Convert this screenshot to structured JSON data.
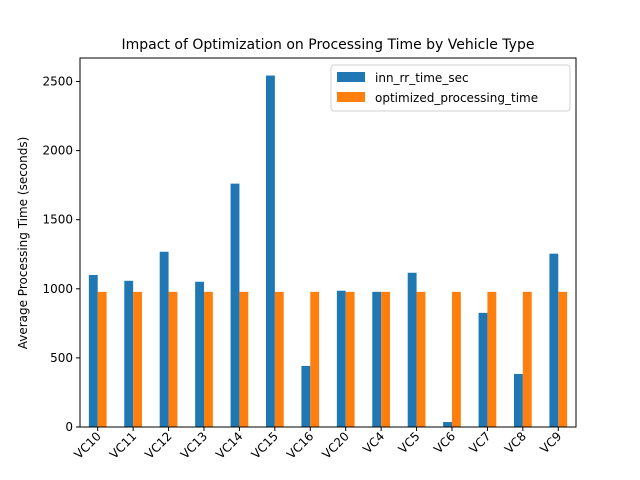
{
  "chart_data": {
    "type": "bar",
    "title": "Impact of Optimization on Processing Time by Vehicle Type",
    "y_label": "Average Processing Time (seconds)",
    "categories": [
      "VC10",
      "VC11",
      "VC12",
      "VC13",
      "VC14",
      "VC15",
      "VC16",
      "VC20",
      "VC4",
      "VC5",
      "VC6",
      "VC7",
      "VC8",
      "VC9"
    ],
    "series": [
      {
        "name": "inn_rr_time_sec",
        "color": "#1f77b4",
        "values": [
          1100,
          1058,
          1268,
          1051,
          1761,
          2543,
          442,
          986,
          978,
          1116,
          36,
          826,
          384,
          1254
        ]
      },
      {
        "name": "optimized_processing_time",
        "color": "#ff7f0e",
        "values": [
          978,
          978,
          978,
          978,
          978,
          978,
          978,
          978,
          978,
          978,
          978,
          978,
          978,
          978
        ]
      }
    ],
    "ylim": [
      0,
      2670
    ],
    "yticks": [
      0,
      500,
      1000,
      1500,
      2000,
      2500
    ],
    "grid": false,
    "legend": "upper right"
  }
}
